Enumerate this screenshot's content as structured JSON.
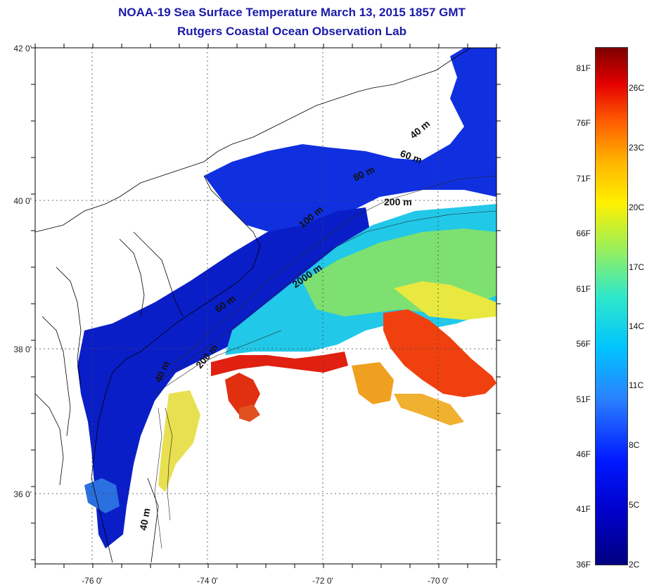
{
  "title": "NOAA-19 Sea Surface Temperature March 13, 2015 1857 GMT",
  "subtitle": "Rutgers Coastal Ocean Observation Lab",
  "axes": {
    "lon_labels": [
      "-76 0'",
      "-74 0'",
      "-72 0'",
      "-70 0'"
    ],
    "lat_labels": [
      "42 0'",
      "40 0'",
      "38 0'",
      "36 0'"
    ]
  },
  "depth_contours": [
    "40 m",
    "60 m",
    "80 m",
    "200 m",
    "100 m",
    "2000 m",
    "60 m",
    "200 m",
    "40 m",
    "40 m"
  ],
  "colorbar": {
    "fahrenheit": [
      "81F",
      "76F",
      "71F",
      "66F",
      "61F",
      "56F",
      "51F",
      "46F",
      "41F",
      "36F"
    ],
    "celsius": [
      "26C",
      "23C",
      "20C",
      "17C",
      "14C",
      "11C",
      "8C",
      "5C",
      "2C"
    ]
  },
  "colors": {
    "title": "#1a1aa8",
    "cold": "#0000c8",
    "warm": "#e40000"
  }
}
